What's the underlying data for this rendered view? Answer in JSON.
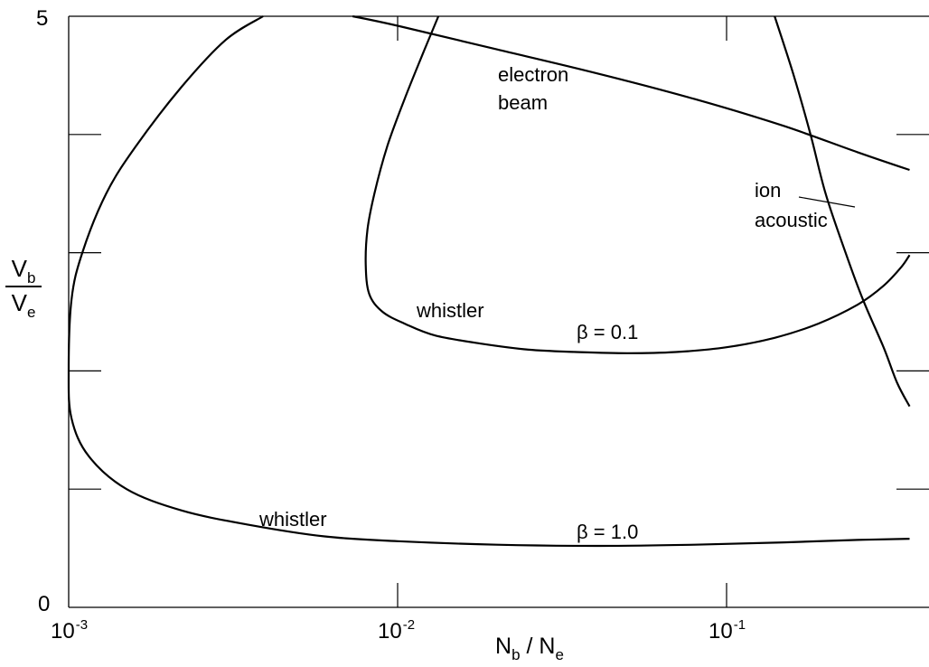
{
  "chart_data": {
    "type": "line",
    "title": "",
    "xlabel": {
      "main": "N",
      "sub1": "b",
      "sep": " / N",
      "sub2": "e"
    },
    "ylabel": {
      "num_main": "V",
      "num_sub": "b",
      "den_main": "V",
      "den_sub": "e"
    },
    "xscale": "log",
    "xlim": [
      0.001,
      0.36
    ],
    "ylim": [
      0,
      5
    ],
    "x_ticks": [
      {
        "value": 0.001,
        "base": "10",
        "exp": "-3"
      },
      {
        "value": 0.01,
        "base": "10",
        "exp": "-2"
      },
      {
        "value": 0.1,
        "base": "10",
        "exp": "-1"
      }
    ],
    "y_ticks": [
      {
        "value": 0,
        "label": "0"
      },
      {
        "value": 1,
        "label": ""
      },
      {
        "value": 2,
        "label": ""
      },
      {
        "value": 3,
        "label": ""
      },
      {
        "value": 4,
        "label": ""
      },
      {
        "value": 5,
        "label": "5"
      }
    ],
    "grid": false,
    "series": [
      {
        "name": "β = 1.0",
        "x": [
          0.0039,
          0.003,
          0.0022,
          0.0016,
          0.0013,
          0.0011,
          0.00102,
          0.001,
          0.00102,
          0.00115,
          0.0015,
          0.0022,
          0.0035,
          0.006,
          0.01,
          0.02,
          0.04,
          0.08,
          0.15,
          0.25,
          0.36
        ],
        "y": [
          5.0,
          4.8,
          4.4,
          3.9,
          3.5,
          3.0,
          2.6,
          2.0,
          1.6,
          1.28,
          1.0,
          0.82,
          0.7,
          0.6,
          0.56,
          0.53,
          0.52,
          0.53,
          0.55,
          0.57,
          0.58
        ]
      },
      {
        "name": "β = 0.1",
        "x": [
          0.0133,
          0.012,
          0.0105,
          0.0093,
          0.0085,
          0.0081,
          0.008,
          0.0082,
          0.009,
          0.0105,
          0.013,
          0.018,
          0.025,
          0.035,
          0.05,
          0.07,
          0.1,
          0.14,
          0.19,
          0.25,
          0.3,
          0.34,
          0.36
        ],
        "y": [
          5.0,
          4.7,
          4.3,
          3.9,
          3.5,
          3.2,
          2.9,
          2.65,
          2.5,
          2.4,
          2.3,
          2.23,
          2.18,
          2.16,
          2.15,
          2.16,
          2.2,
          2.28,
          2.4,
          2.56,
          2.72,
          2.88,
          2.98
        ]
      },
      {
        "name": "electron beam",
        "x": [
          0.0073,
          0.01,
          0.02,
          0.04,
          0.08,
          0.15,
          0.25,
          0.36
        ],
        "y": [
          5.0,
          4.92,
          4.72,
          4.52,
          4.3,
          4.07,
          3.85,
          3.7
        ]
      },
      {
        "name": "ion acoustic",
        "x": [
          0.14,
          0.16,
          0.18,
          0.2,
          0.23,
          0.26,
          0.3,
          0.33,
          0.36
        ],
        "y": [
          5.0,
          4.5,
          4.0,
          3.5,
          3.0,
          2.6,
          2.2,
          1.9,
          1.7
        ]
      }
    ],
    "annotations": [
      {
        "text": "electron",
        "x": 0.0235,
        "y": 4.6
      },
      {
        "text": "beam",
        "x": 0.0235,
        "y": 4.38
      },
      {
        "text": "ion",
        "x": 0.112,
        "y": 3.5
      },
      {
        "text": "acoustic",
        "x": 0.112,
        "y": 3.26
      },
      {
        "text": "whistler",
        "x": 0.0139,
        "y": 2.5
      },
      {
        "text": "whistler",
        "x": 0.0037,
        "y": 0.7
      },
      {
        "text": "β = 0.1",
        "x": 0.0395,
        "y": 2.25
      },
      {
        "text": "β = 1.0",
        "x": 0.0395,
        "y": 0.55
      }
    ],
    "legend": "none"
  }
}
